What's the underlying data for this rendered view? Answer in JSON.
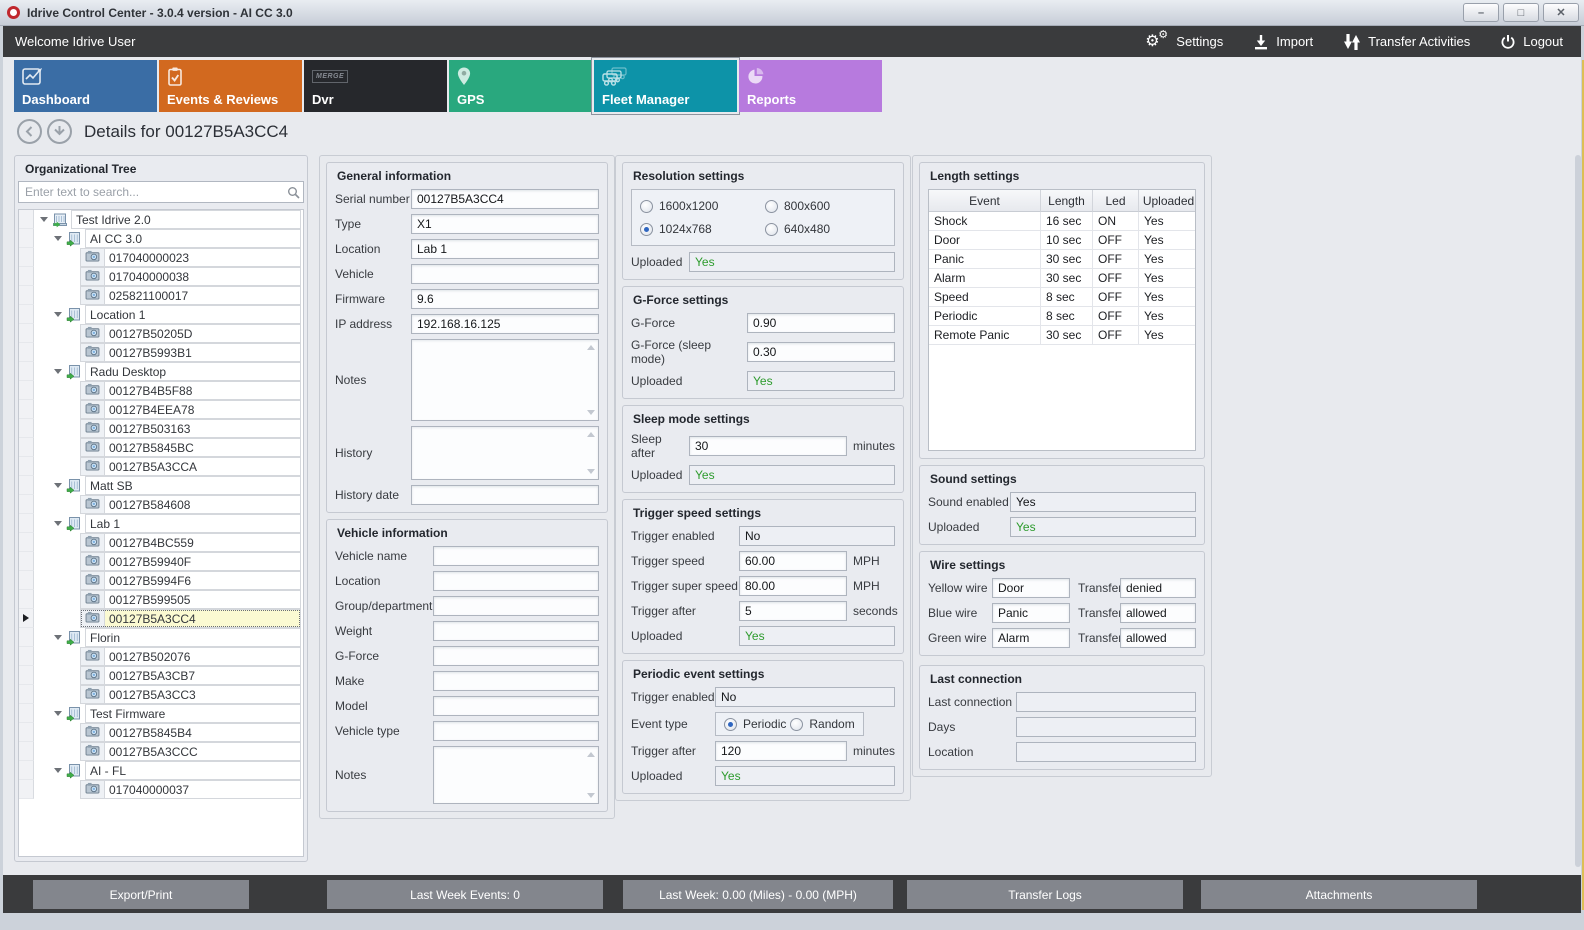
{
  "window": {
    "title": "Idrive Control Center - 3.0.4 version - AI CC 3.0",
    "controls": [
      {
        "name": "minimize",
        "glyph": "–"
      },
      {
        "name": "maximize",
        "glyph": "□"
      },
      {
        "name": "close",
        "glyph": "✕"
      }
    ]
  },
  "toolbar": {
    "welcome": "Welcome Idrive User",
    "actions": [
      {
        "label": "Settings",
        "icon": "gear-icon"
      },
      {
        "label": "Import",
        "icon": "import-icon"
      },
      {
        "label": "Transfer Activities",
        "icon": "transfer-icon"
      },
      {
        "label": "Logout",
        "icon": "power-icon"
      }
    ]
  },
  "tabs": [
    {
      "label": "Dashboard",
      "icon": "dashboard-icon",
      "color": "#3a6da5",
      "selected": false
    },
    {
      "label": "Events & Reviews",
      "icon": "events-icon",
      "color": "#d2691f",
      "selected": false
    },
    {
      "label": "Dvr",
      "icon": "dvr-icon",
      "color": "#26282c",
      "selected": false
    },
    {
      "label": "GPS",
      "icon": "gps-icon",
      "color": "#29a87e",
      "selected": false
    },
    {
      "label": "Fleet Manager",
      "icon": "fleet-icon",
      "color": "#0d93a8",
      "selected": true
    },
    {
      "label": "Reports",
      "icon": "reports-icon",
      "color": "#b77ade",
      "selected": false
    }
  ],
  "details": {
    "title": "Details for 00127B5A3CC4"
  },
  "org_tree": {
    "title": "Organizational Tree",
    "search_placeholder": "Enter text to search...",
    "nodes": [
      {
        "level": 0,
        "type": "org",
        "label": "Test Idrive 2.0"
      },
      {
        "level": 1,
        "type": "group",
        "label": "AI CC 3.0"
      },
      {
        "level": 2,
        "type": "device",
        "label": "017040000023"
      },
      {
        "level": 2,
        "type": "device",
        "label": "017040000038"
      },
      {
        "level": 2,
        "type": "device",
        "label": "025821100017"
      },
      {
        "level": 1,
        "type": "group",
        "label": "Location 1"
      },
      {
        "level": 2,
        "type": "device",
        "label": "00127B50205D"
      },
      {
        "level": 2,
        "type": "device",
        "label": "00127B5993B1"
      },
      {
        "level": 1,
        "type": "group",
        "label": "Radu Desktop"
      },
      {
        "level": 2,
        "type": "device",
        "label": "00127B4B5F88"
      },
      {
        "level": 2,
        "type": "device",
        "label": "00127B4EEA78"
      },
      {
        "level": 2,
        "type": "device",
        "label": "00127B503163"
      },
      {
        "level": 2,
        "type": "device",
        "label": "00127B5845BC"
      },
      {
        "level": 2,
        "type": "device",
        "label": "00127B5A3CCA"
      },
      {
        "level": 1,
        "type": "group",
        "label": "Matt SB"
      },
      {
        "level": 2,
        "type": "device",
        "label": "00127B584608"
      },
      {
        "level": 1,
        "type": "group",
        "label": "Lab 1"
      },
      {
        "level": 2,
        "type": "device",
        "label": "00127B4BC559"
      },
      {
        "level": 2,
        "type": "device",
        "label": "00127B59940F"
      },
      {
        "level": 2,
        "type": "device",
        "label": "00127B5994F6"
      },
      {
        "level": 2,
        "type": "device",
        "label": "00127B599505"
      },
      {
        "level": 2,
        "type": "device",
        "label": "00127B5A3CC4",
        "selected": true
      },
      {
        "level": 1,
        "type": "group",
        "label": "Florin"
      },
      {
        "level": 2,
        "type": "device",
        "label": "00127B502076"
      },
      {
        "level": 2,
        "type": "device",
        "label": "00127B5A3CB7"
      },
      {
        "level": 2,
        "type": "device",
        "label": "00127B5A3CC3"
      },
      {
        "level": 1,
        "type": "group",
        "label": "Test Firmware"
      },
      {
        "level": 2,
        "type": "device",
        "label": "00127B5845B4"
      },
      {
        "level": 2,
        "type": "device",
        "label": "00127B5A3CCC"
      },
      {
        "level": 1,
        "type": "group",
        "label": "AI - FL"
      },
      {
        "level": 2,
        "type": "device",
        "label": "017040000037"
      }
    ]
  },
  "panels": {
    "general_information": {
      "title": "General information",
      "fields": [
        {
          "label": "Serial number",
          "value": "00127B5A3CC4"
        },
        {
          "label": "Type",
          "value": "X1"
        },
        {
          "label": "Location",
          "value": "Lab 1"
        },
        {
          "label": "Vehicle",
          "value": ""
        },
        {
          "label": "Firmware",
          "value": "9.6"
        },
        {
          "label": "IP address",
          "value": "192.168.16.125"
        }
      ],
      "notes_label": "Notes",
      "notes_value": "",
      "history_label": "History",
      "history_value": "",
      "history_date_label": "History date",
      "history_date_value": ""
    },
    "vehicle_information": {
      "title": "Vehicle information",
      "fields": [
        {
          "label": "Vehicle name",
          "value": ""
        },
        {
          "label": "Location",
          "value": ""
        },
        {
          "label": "Group/department",
          "value": ""
        },
        {
          "label": "Weight",
          "value": ""
        },
        {
          "label": "G-Force",
          "value": ""
        },
        {
          "label": "Make",
          "value": ""
        },
        {
          "label": "Model",
          "value": ""
        },
        {
          "label": "Vehicle type",
          "value": ""
        }
      ],
      "notes_label": "Notes",
      "notes_value": ""
    },
    "resolution_settings": {
      "title": "Resolution settings",
      "options": [
        {
          "label": "1600x1200",
          "selected": false
        },
        {
          "label": "800x600",
          "selected": false
        },
        {
          "label": "1024x768",
          "selected": true
        },
        {
          "label": "640x480",
          "selected": false
        }
      ],
      "uploaded_label": "Uploaded",
      "uploaded_value": "Yes"
    },
    "gforce_settings": {
      "title": "G-Force settings",
      "fields": [
        {
          "label": "G-Force",
          "value": "0.90"
        },
        {
          "label": "G-Force (sleep mode)",
          "value": "0.30"
        }
      ],
      "uploaded_label": "Uploaded",
      "uploaded_value": "Yes"
    },
    "sleep_mode_settings": {
      "title": "Sleep mode settings",
      "sleep_after_label": "Sleep after",
      "sleep_after_value": "30",
      "sleep_after_suffix": "minutes",
      "uploaded_label": "Uploaded",
      "uploaded_value": "Yes"
    },
    "trigger_speed_settings": {
      "title": "Trigger speed settings",
      "rows": [
        {
          "label": "Trigger enabled",
          "value": "No",
          "suffix": "",
          "readonly": true,
          "full": true
        },
        {
          "label": "Trigger speed",
          "value": "60.00",
          "suffix": "MPH"
        },
        {
          "label": "Trigger super speed",
          "value": "80.00",
          "suffix": "MPH"
        },
        {
          "label": "Trigger after",
          "value": "5",
          "suffix": "seconds"
        }
      ],
      "uploaded_label": "Uploaded",
      "uploaded_value": "Yes"
    },
    "periodic_event_settings": {
      "title": "Periodic event settings",
      "trigger_enabled_label": "Trigger enabled",
      "trigger_enabled_value": "No",
      "event_type_label": "Event type",
      "event_type_options": [
        {
          "label": "Periodic",
          "selected": true
        },
        {
          "label": "Random",
          "selected": false
        }
      ],
      "trigger_after_label": "Trigger after",
      "trigger_after_value": "120",
      "trigger_after_suffix": "minutes",
      "uploaded_label": "Uploaded",
      "uploaded_value": "Yes"
    },
    "length_settings": {
      "title": "Length settings",
      "columns": [
        "Event",
        "Length",
        "Led",
        "Uploaded"
      ],
      "rows": [
        [
          "Shock",
          "16 sec",
          "ON",
          "Yes"
        ],
        [
          "Door",
          "10 sec",
          "OFF",
          "Yes"
        ],
        [
          "Panic",
          "30 sec",
          "OFF",
          "Yes"
        ],
        [
          "Alarm",
          "30 sec",
          "OFF",
          "Yes"
        ],
        [
          "Speed",
          "8 sec",
          "OFF",
          "Yes"
        ],
        [
          "Periodic",
          "8 sec",
          "OFF",
          "Yes"
        ],
        [
          "Remote Panic",
          "30 sec",
          "OFF",
          "Yes"
        ]
      ]
    },
    "sound_settings": {
      "title": "Sound settings",
      "rows": [
        {
          "label": "Sound enabled",
          "value": "Yes",
          "green": false
        },
        {
          "label": "Uploaded",
          "value": "Yes",
          "green": true
        }
      ]
    },
    "wire_settings": {
      "title": "Wire settings",
      "rows": [
        {
          "label": "Yellow wire",
          "value": "Door",
          "transfer_label": "Transfer",
          "transfer_value": "denied"
        },
        {
          "label": "Blue wire",
          "value": "Panic",
          "transfer_label": "Transfer",
          "transfer_value": "allowed"
        },
        {
          "label": "Green wire",
          "value": "Alarm",
          "transfer_label": "Transfer",
          "transfer_value": "allowed"
        }
      ]
    },
    "last_connection": {
      "title": "Last connection",
      "rows": [
        {
          "label": "Last connection",
          "value": ""
        },
        {
          "label": "Days",
          "value": ""
        },
        {
          "label": "Location",
          "value": ""
        }
      ]
    }
  },
  "bottom_bar": {
    "buttons": [
      "Export/Print",
      "Last Week Events: 0",
      "Last Week: 0.00 (Miles) - 0.00 (MPH)",
      "Transfer Logs",
      "Attachments"
    ]
  },
  "colors": {
    "status_green": "#2d9b2d",
    "selected_row": "#fbfad2",
    "toolbar_dark": "#3a3b3d",
    "accent_selected_tab": "#0d93a8"
  }
}
